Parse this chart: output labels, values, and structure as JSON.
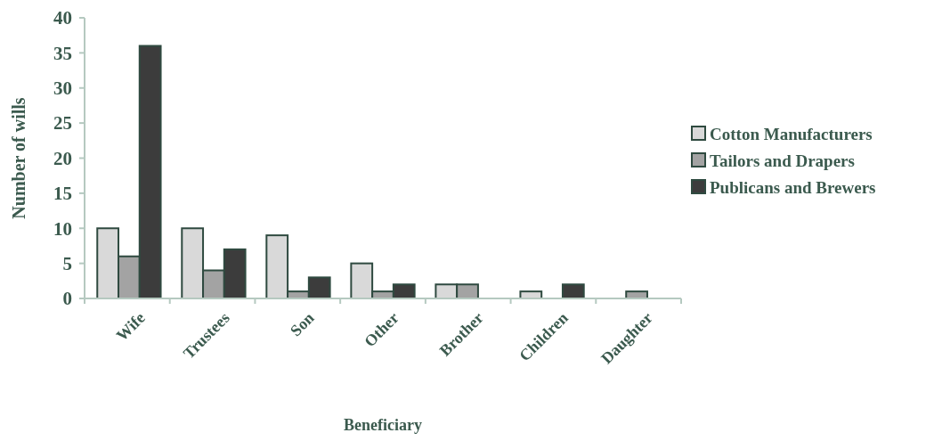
{
  "chart_data": {
    "type": "bar",
    "xlabel": "Beneficiary",
    "ylabel": "Number of wills",
    "categories": [
      "Wife",
      "Trustees",
      "Son",
      "Other",
      "Brother",
      "Children",
      "Daughter"
    ],
    "series": [
      {
        "name": "Cotton Manufacturers",
        "color": "#d9d9d9",
        "values": [
          10,
          10,
          9,
          5,
          2,
          1,
          0
        ]
      },
      {
        "name": "Tailors and Drapers",
        "color": "#a3a3a3",
        "values": [
          6,
          4,
          1,
          1,
          2,
          0,
          1
        ]
      },
      {
        "name": "Publicans and Brewers",
        "color": "#3c3c3c",
        "values": [
          36,
          7,
          3,
          2,
          0,
          2,
          0
        ]
      }
    ],
    "ylim": [
      0,
      40
    ],
    "yticks": [
      0,
      5,
      10,
      15,
      20,
      25,
      30,
      35,
      40
    ],
    "grid": false,
    "legend": "right"
  }
}
